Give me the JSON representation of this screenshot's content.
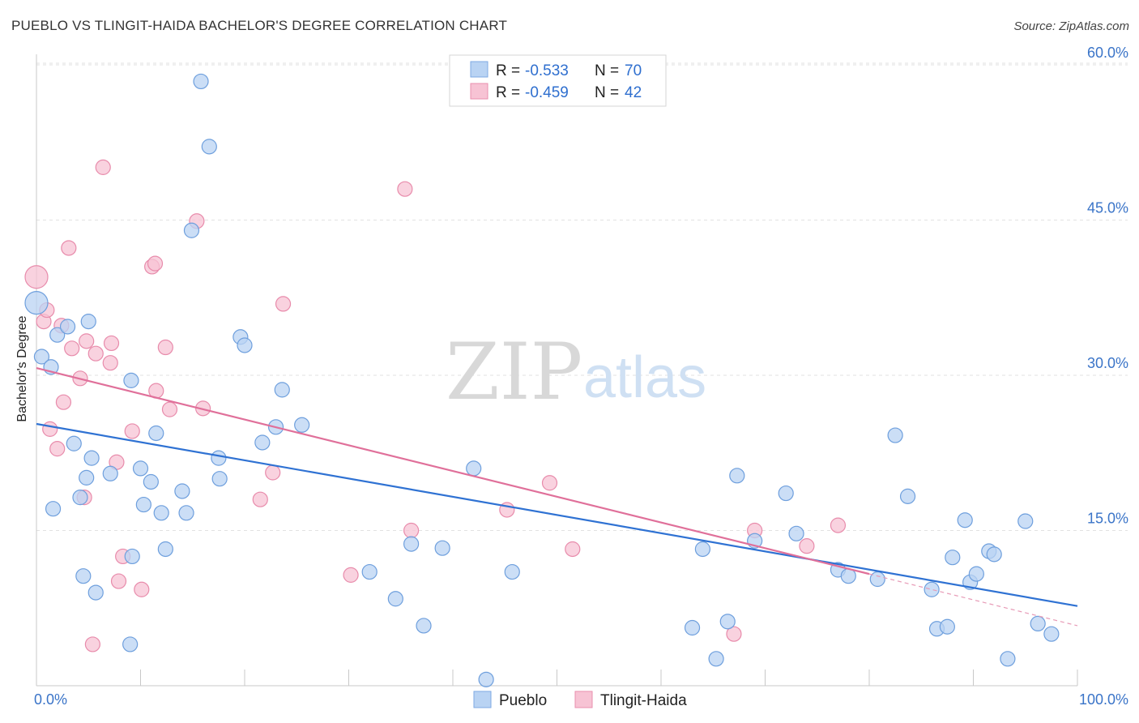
{
  "title": "PUEBLO VS TLINGIT-HAIDA BACHELOR'S DEGREE CORRELATION CHART",
  "source": "Source: ZipAtlas.com",
  "watermark": {
    "zip": "ZIP",
    "atlas": "atlas"
  },
  "colors": {
    "pueblo": "#5b93d9",
    "tlingit": "#e07aa0",
    "pueblo_fill": "#b9d3f3",
    "tlingit_fill": "#f7c3d4",
    "axis_text": "#3a74c8"
  },
  "legend": {
    "pueblo": {
      "r_label": "R =",
      "r_value": "-0.533",
      "n_label": "N =",
      "n_value": "70"
    },
    "tlingit": {
      "r_label": "R =",
      "r_value": "-0.459",
      "n_label": "N =",
      "n_value": "42"
    }
  },
  "bottom_legend": {
    "pueblo": "Pueblo",
    "tlingit": "Tlingit-Haida"
  },
  "chart_data": {
    "type": "scatter",
    "xlabel": "",
    "ylabel": "Bachelor's Degree",
    "xlim": [
      0,
      100
    ],
    "ylim": [
      0,
      60
    ],
    "x_tick_labels": [
      "0.0%",
      "100.0%"
    ],
    "y_ticks": [
      15,
      30,
      45,
      60
    ],
    "y_tick_labels": [
      "15.0%",
      "30.0%",
      "45.0%",
      "60.0%"
    ],
    "grid": true,
    "series": [
      {
        "name": "Pueblo",
        "trend": {
          "x": [
            0,
            100
          ],
          "y": [
            25.3,
            7.7
          ]
        },
        "points": [
          [
            0,
            37.0
          ],
          [
            0.5,
            31.8
          ],
          [
            1.4,
            30.8
          ],
          [
            2.0,
            33.9
          ],
          [
            3.0,
            34.7
          ],
          [
            5.0,
            35.2
          ],
          [
            1.6,
            17.1
          ],
          [
            3.6,
            23.4
          ],
          [
            4.5,
            10.6
          ],
          [
            4.2,
            18.2
          ],
          [
            4.8,
            20.1
          ],
          [
            5.3,
            22.0
          ],
          [
            5.7,
            9.0
          ],
          [
            7.1,
            20.5
          ],
          [
            9.0,
            4.0
          ],
          [
            9.1,
            29.5
          ],
          [
            9.2,
            12.5
          ],
          [
            10.0,
            21.0
          ],
          [
            10.3,
            17.5
          ],
          [
            11.0,
            19.7
          ],
          [
            11.5,
            24.4
          ],
          [
            12.0,
            16.7
          ],
          [
            12.4,
            13.2
          ],
          [
            14.0,
            18.8
          ],
          [
            14.4,
            16.7
          ],
          [
            14.9,
            44.0
          ],
          [
            15.8,
            58.4
          ],
          [
            16.6,
            52.1
          ],
          [
            17.5,
            22.0
          ],
          [
            17.6,
            20.0
          ],
          [
            19.6,
            33.7
          ],
          [
            20.0,
            32.9
          ],
          [
            21.7,
            23.5
          ],
          [
            23.0,
            25.0
          ],
          [
            23.6,
            28.6
          ],
          [
            25.5,
            25.2
          ],
          [
            32.0,
            11.0
          ],
          [
            34.5,
            8.4
          ],
          [
            36.0,
            13.7
          ],
          [
            37.2,
            5.8
          ],
          [
            39.0,
            13.3
          ],
          [
            42.0,
            21.0
          ],
          [
            43.2,
            0.6
          ],
          [
            45.7,
            11.0
          ],
          [
            63.0,
            5.6
          ],
          [
            64.0,
            13.2
          ],
          [
            65.3,
            2.6
          ],
          [
            66.4,
            6.2
          ],
          [
            67.3,
            20.3
          ],
          [
            69.0,
            14.0
          ],
          [
            72.0,
            18.6
          ],
          [
            73.0,
            14.7
          ],
          [
            77.0,
            11.2
          ],
          [
            78.0,
            10.6
          ],
          [
            80.8,
            10.3
          ],
          [
            82.5,
            24.2
          ],
          [
            83.7,
            18.3
          ],
          [
            86.0,
            9.3
          ],
          [
            86.5,
            5.5
          ],
          [
            87.5,
            5.7
          ],
          [
            88.0,
            12.4
          ],
          [
            89.2,
            16.0
          ],
          [
            89.7,
            10.0
          ],
          [
            90.3,
            10.8
          ],
          [
            91.5,
            13.0
          ],
          [
            92.0,
            12.7
          ],
          [
            93.3,
            2.6
          ],
          [
            95.0,
            15.9
          ],
          [
            96.2,
            6.0
          ],
          [
            97.5,
            5.0
          ]
        ]
      },
      {
        "name": "Tlingit-Haida",
        "trend": {
          "x": [
            0,
            80.0
          ],
          "y": [
            30.7,
            10.8
          ]
        },
        "trend_dashed": {
          "x": [
            80.0,
            100
          ],
          "y": [
            10.8,
            5.8
          ]
        },
        "points": [
          [
            0,
            39.5
          ],
          [
            0.7,
            35.2
          ],
          [
            1.0,
            36.3
          ],
          [
            1.3,
            24.8
          ],
          [
            2.0,
            22.9
          ],
          [
            2.4,
            34.8
          ],
          [
            2.6,
            27.4
          ],
          [
            3.1,
            42.3
          ],
          [
            3.4,
            32.6
          ],
          [
            4.2,
            29.7
          ],
          [
            4.6,
            18.2
          ],
          [
            4.8,
            33.3
          ],
          [
            5.4,
            4.0
          ],
          [
            5.7,
            32.1
          ],
          [
            6.4,
            50.1
          ],
          [
            7.1,
            31.2
          ],
          [
            7.2,
            33.1
          ],
          [
            7.7,
            21.6
          ],
          [
            7.9,
            10.1
          ],
          [
            8.3,
            12.5
          ],
          [
            9.2,
            24.6
          ],
          [
            10.1,
            9.3
          ],
          [
            11.1,
            40.5
          ],
          [
            11.4,
            40.8
          ],
          [
            11.5,
            28.5
          ],
          [
            12.4,
            32.7
          ],
          [
            12.8,
            26.7
          ],
          [
            15.4,
            44.9
          ],
          [
            16.0,
            26.8
          ],
          [
            21.5,
            18.0
          ],
          [
            22.7,
            20.6
          ],
          [
            23.7,
            36.9
          ],
          [
            30.2,
            10.7
          ],
          [
            35.4,
            48.0
          ],
          [
            36.0,
            15.0
          ],
          [
            45.2,
            17.0
          ],
          [
            49.3,
            19.6
          ],
          [
            51.5,
            13.2
          ],
          [
            67.0,
            5.0
          ],
          [
            69.0,
            15.0
          ],
          [
            74.0,
            13.5
          ],
          [
            77.0,
            15.5
          ]
        ]
      }
    ]
  }
}
